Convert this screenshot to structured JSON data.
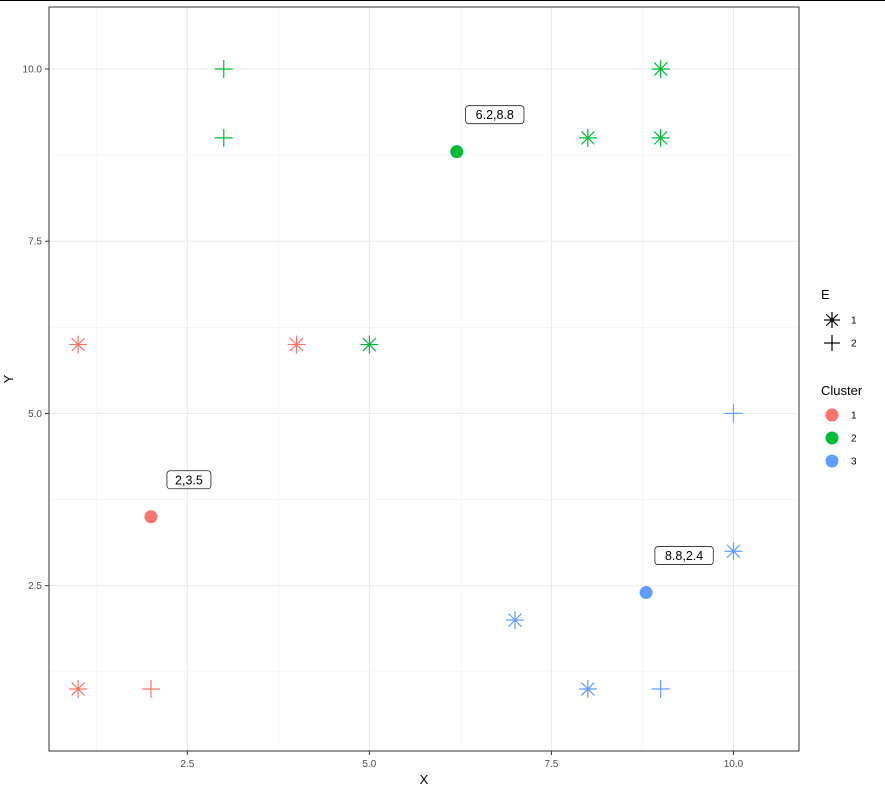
{
  "chart_data": {
    "type": "scatter",
    "title": "",
    "xlabel": "X",
    "ylabel": "Y",
    "xlim": [
      0.6,
      10.9
    ],
    "ylim": [
      0.1,
      10.9
    ],
    "x_ticks": [
      2.5,
      5.0,
      7.5,
      10.0
    ],
    "y_ticks": [
      2.5,
      5.0,
      7.5,
      10.0
    ],
    "x_tick_labels": [
      "2.5",
      "5.0",
      "7.5",
      "10.0"
    ],
    "y_tick_labels": [
      "2.5",
      "5.0",
      "7.5",
      "10.0"
    ],
    "grid": true,
    "points": [
      {
        "x": 1,
        "y": 6,
        "cluster": "1",
        "E": "1"
      },
      {
        "x": 4,
        "y": 6,
        "cluster": "1",
        "E": "1"
      },
      {
        "x": 1,
        "y": 1,
        "cluster": "1",
        "E": "1"
      },
      {
        "x": 2,
        "y": 1,
        "cluster": "1",
        "E": "2"
      },
      {
        "x": 3,
        "y": 10,
        "cluster": "2",
        "E": "2"
      },
      {
        "x": 3,
        "y": 9,
        "cluster": "2",
        "E": "2"
      },
      {
        "x": 5,
        "y": 6,
        "cluster": "2",
        "E": "1"
      },
      {
        "x": 8,
        "y": 9,
        "cluster": "2",
        "E": "1"
      },
      {
        "x": 9,
        "y": 10,
        "cluster": "2",
        "E": "1"
      },
      {
        "x": 9,
        "y": 9,
        "cluster": "2",
        "E": "1"
      },
      {
        "x": 7,
        "y": 2,
        "cluster": "3",
        "E": "1"
      },
      {
        "x": 8,
        "y": 1,
        "cluster": "3",
        "E": "1"
      },
      {
        "x": 9,
        "y": 1,
        "cluster": "3",
        "E": "2"
      },
      {
        "x": 10,
        "y": 3,
        "cluster": "3",
        "E": "1"
      },
      {
        "x": 10,
        "y": 5,
        "cluster": "3",
        "E": "2"
      }
    ],
    "centroids": [
      {
        "x": 2,
        "y": 3.5,
        "cluster": "1",
        "label": "2,3.5"
      },
      {
        "x": 6.2,
        "y": 8.8,
        "cluster": "2",
        "label": "6.2,8.8"
      },
      {
        "x": 8.8,
        "y": 2.4,
        "cluster": "3",
        "label": "8.8,2.4"
      }
    ],
    "legend": {
      "placement": "right",
      "shape": {
        "title": "E",
        "entries": [
          {
            "label": "1",
            "shape": "asterisk"
          },
          {
            "label": "2",
            "shape": "plus"
          }
        ]
      },
      "color": {
        "title": "Cluster",
        "entries": [
          {
            "label": "1",
            "color": "#F8766D"
          },
          {
            "label": "2",
            "color": "#00BA38"
          },
          {
            "label": "3",
            "color": "#619CFF"
          }
        ]
      }
    },
    "colors": {
      "1": "#F8766D",
      "2": "#00BA38",
      "3": "#619CFF"
    }
  }
}
